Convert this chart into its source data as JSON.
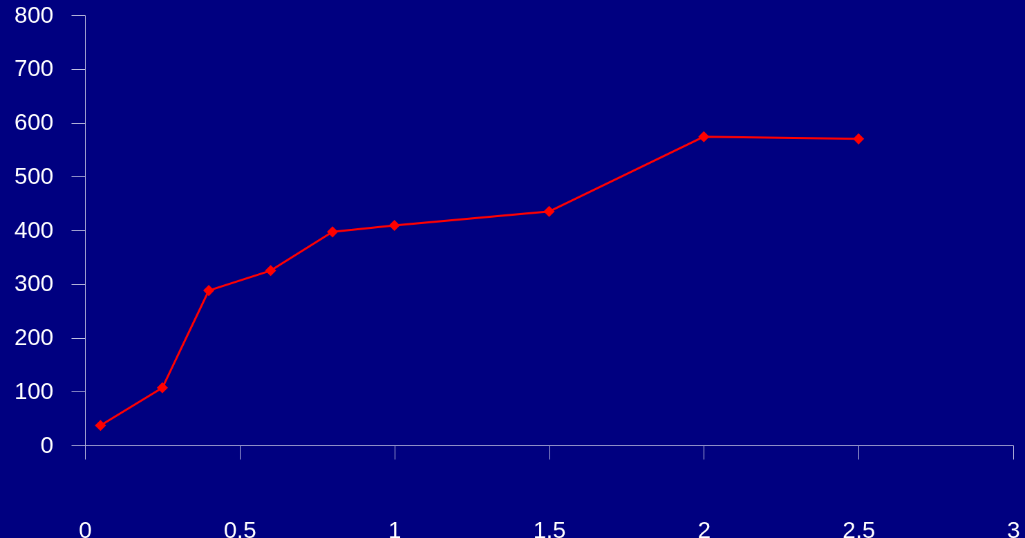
{
  "chart_data": {
    "type": "line",
    "x": [
      0.05,
      0.25,
      0.4,
      0.6,
      0.8,
      1,
      1.5,
      2,
      2.5
    ],
    "series": [
      {
        "color": "#ff0000",
        "values": [
          37,
          107,
          288,
          325,
          397,
          409,
          435,
          574,
          570
        ]
      }
    ],
    "xlim": [
      0,
      3
    ],
    "xticks": [
      0,
      0.5,
      1,
      1.5,
      2,
      2.5,
      3
    ],
    "ylim": [
      0,
      800
    ],
    "yticks": [
      0,
      100,
      200,
      300,
      400,
      500,
      600,
      700,
      800
    ],
    "marker": "diamond",
    "line_style": "solid",
    "grid": false,
    "legend": false
  }
}
